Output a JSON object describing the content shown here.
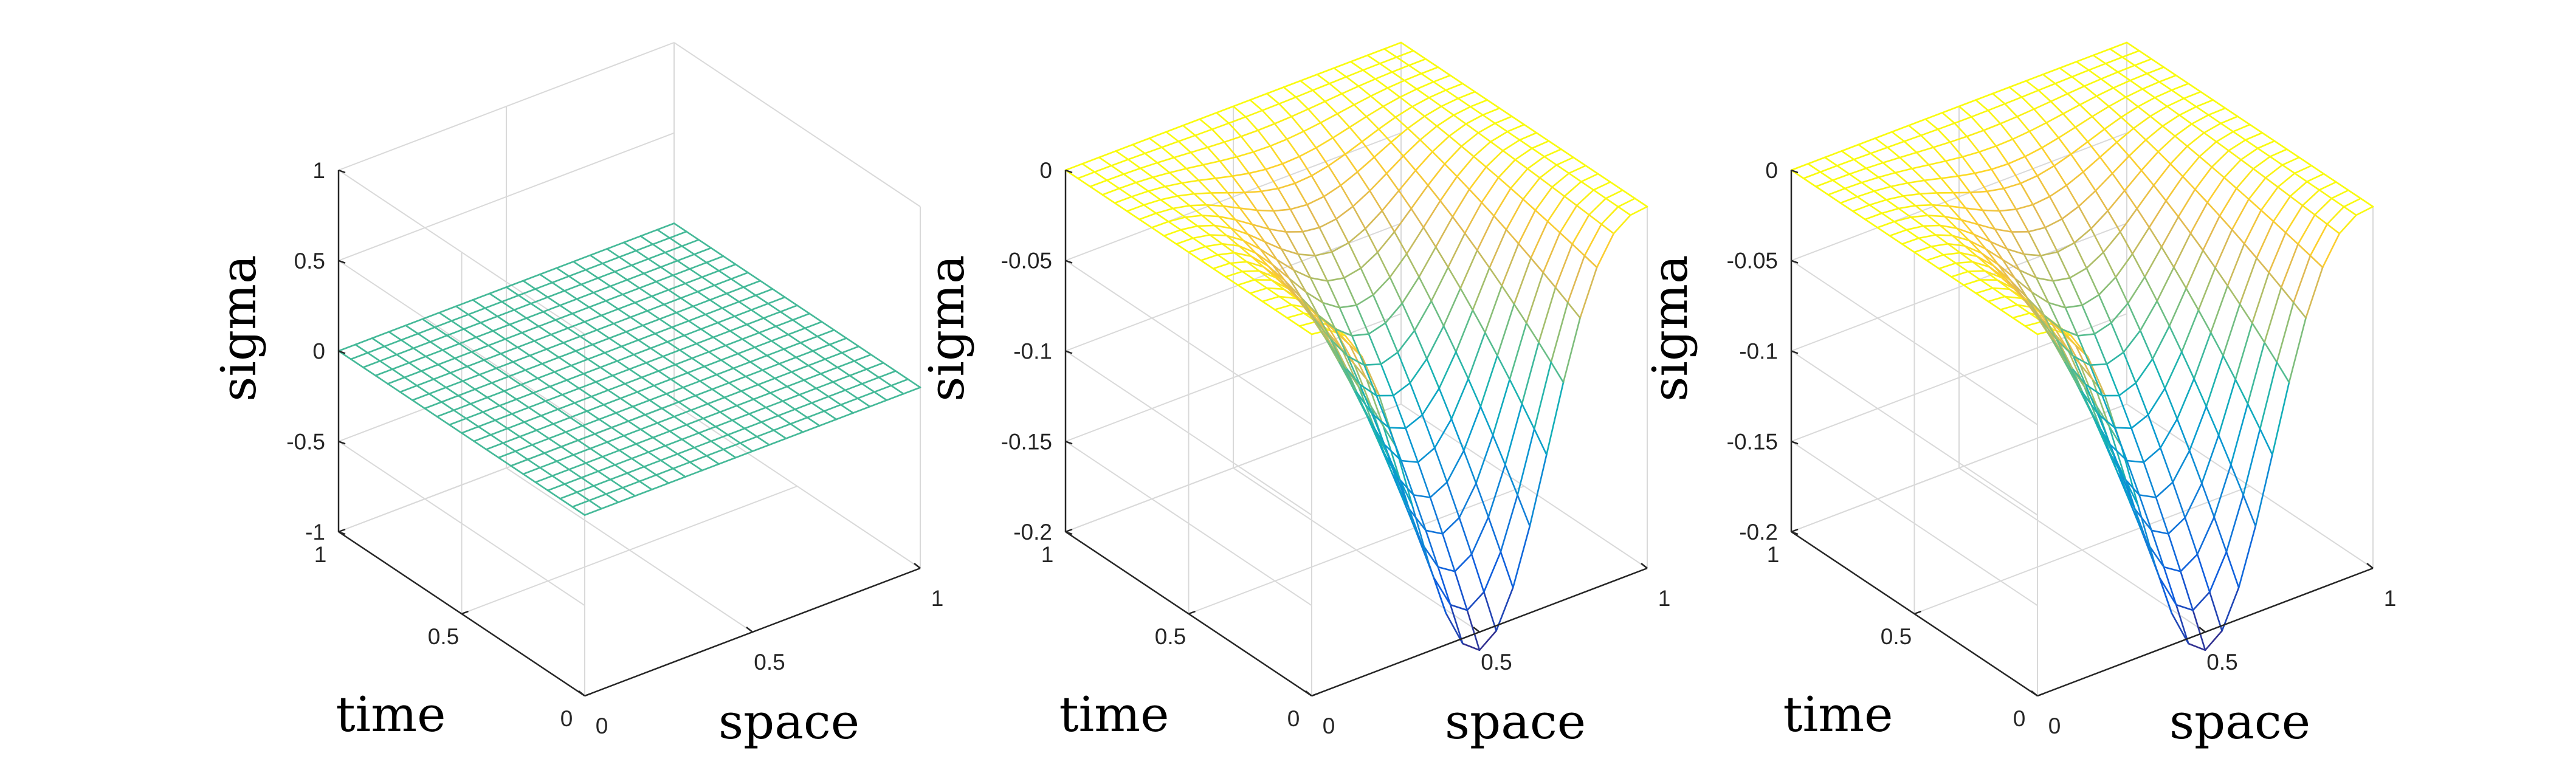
{
  "chart_data": [
    {
      "type": "surface",
      "xlabel": "space",
      "ylabel": "time",
      "zlabel": "sigma",
      "xlim": [
        0,
        1
      ],
      "ylim": [
        0,
        1
      ],
      "zlim": [
        -1,
        1
      ],
      "xticks": [
        "0",
        "0.5",
        "1"
      ],
      "yticks": [
        "0",
        "0.5",
        "1"
      ],
      "zticks": [
        "-1",
        "-0.5",
        "0",
        "0.5",
        "1"
      ],
      "zticks_values": [
        -1,
        -0.5,
        0,
        0.5,
        1
      ],
      "grid_nodes": 21,
      "surface": "z = 0 (flat)",
      "z_min": 0,
      "z_min_at": {
        "space": 0.5,
        "time": 0
      },
      "colormap": "parula",
      "grid": true
    },
    {
      "type": "surface",
      "xlabel": "space",
      "ylabel": "time",
      "zlabel": "sigma",
      "xlim": [
        0,
        1
      ],
      "ylim": [
        0,
        1
      ],
      "zlim": [
        -0.2,
        0
      ],
      "xticks": [
        "0",
        "0.5",
        "1"
      ],
      "yticks": [
        "0",
        "0.5",
        "1"
      ],
      "zticks": [
        "-0.2",
        "-0.15",
        "-0.1",
        "-0.05",
        "0"
      ],
      "zticks_values": [
        -0.2,
        -0.15,
        -0.1,
        -0.05,
        0
      ],
      "grid_nodes": 21,
      "surface": "z = -A·sin(pi·space)^p·(1-time)^q",
      "z_min": -0.21,
      "z_min_at": {
        "space": 0.5,
        "time": 0
      },
      "z_max": 0,
      "colormap": "parula",
      "grid": true
    },
    {
      "type": "surface",
      "xlabel": "space",
      "ylabel": "time",
      "zlabel": "sigma",
      "xlim": [
        0,
        1
      ],
      "ylim": [
        0,
        1
      ],
      "zlim": [
        -0.2,
        0
      ],
      "xticks": [
        "0",
        "0.5",
        "1"
      ],
      "yticks": [
        "0",
        "0.5",
        "1"
      ],
      "zticks": [
        "-0.2",
        "-0.15",
        "-0.1",
        "-0.05",
        "0"
      ],
      "zticks_values": [
        -0.2,
        -0.15,
        -0.1,
        -0.05,
        0
      ],
      "grid_nodes": 21,
      "surface": "z = -A·sin(pi·space)^p·(1-time)^q",
      "z_min": -0.21,
      "z_min_at": {
        "space": 0.5,
        "time": 0
      },
      "z_max": 0,
      "colormap": "parula",
      "grid": true
    }
  ]
}
